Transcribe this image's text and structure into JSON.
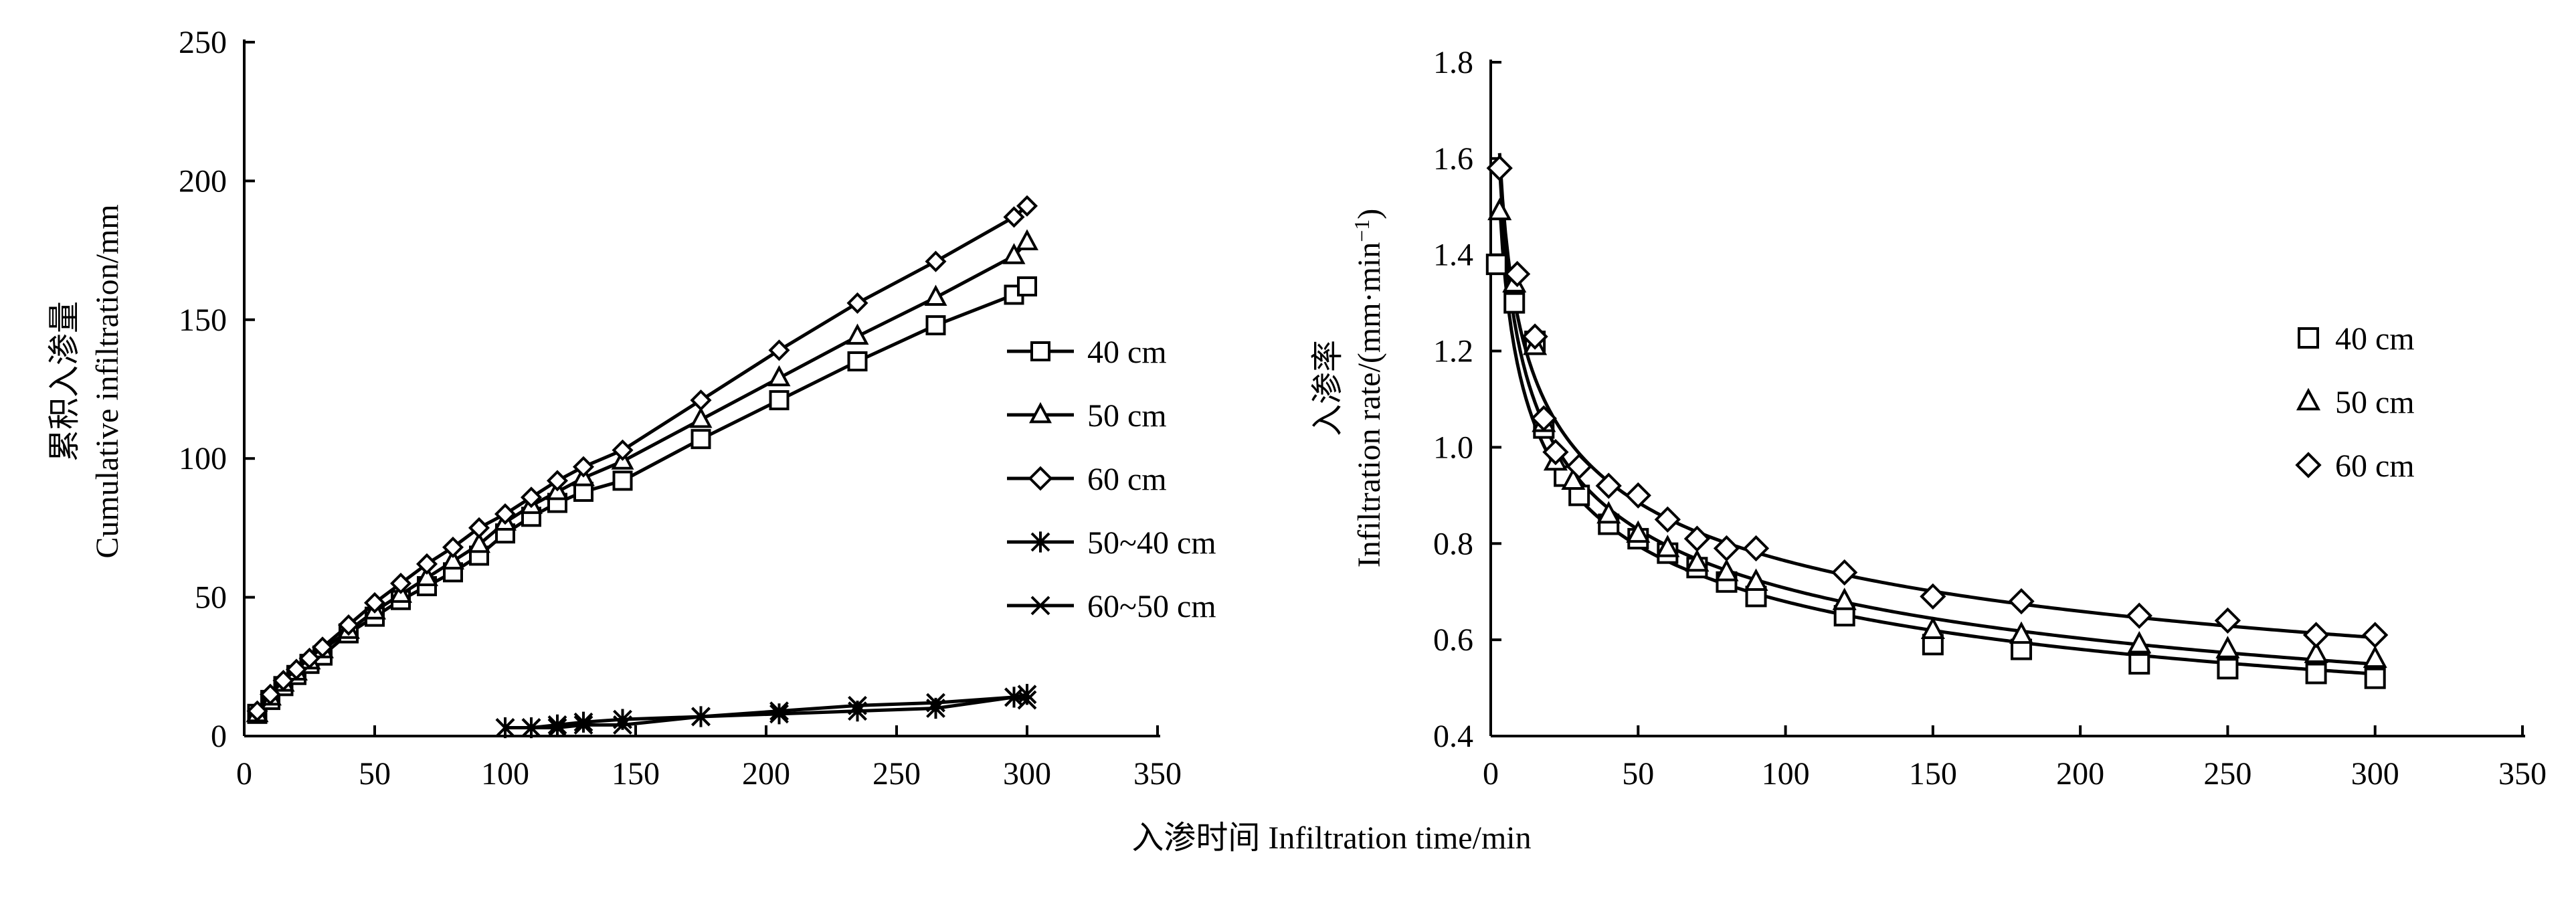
{
  "shared_xlabel": "入渗时间 Infiltration time/min",
  "chart_data": [
    {
      "type": "line",
      "title": "",
      "ylabel_cn": "累积入渗量",
      "ylabel_en": "Cumulative infiltration/mm",
      "xlim": [
        0,
        350
      ],
      "ylim": [
        0,
        250
      ],
      "xticks": [
        0,
        50,
        100,
        150,
        200,
        250,
        300,
        350
      ],
      "yticks": [
        0,
        50,
        100,
        150,
        200,
        250
      ],
      "grid": false,
      "legend_position": "right",
      "series": [
        {
          "name": "40 cm",
          "marker": "square",
          "x": [
            5,
            10,
            15,
            20,
            25,
            30,
            40,
            50,
            60,
            70,
            80,
            90,
            100,
            110,
            120,
            130,
            145,
            175,
            205,
            235,
            265,
            295,
            300
          ],
          "y": [
            8,
            13,
            18,
            22,
            26,
            29,
            37,
            43,
            49,
            54,
            59,
            65,
            73,
            79,
            84,
            88,
            92,
            107,
            121,
            135,
            148,
            159,
            162
          ]
        },
        {
          "name": "50 cm",
          "marker": "triangle",
          "x": [
            5,
            10,
            15,
            20,
            25,
            30,
            40,
            50,
            60,
            70,
            80,
            90,
            100,
            110,
            120,
            130,
            145,
            175,
            205,
            235,
            265,
            295,
            300
          ],
          "y": [
            8,
            14,
            19,
            23,
            27,
            31,
            38,
            45,
            51,
            57,
            63,
            69,
            77,
            83,
            88,
            93,
            99,
            114,
            129,
            144,
            158,
            173,
            178
          ]
        },
        {
          "name": "60 cm",
          "marker": "diamond",
          "x": [
            5,
            10,
            15,
            20,
            25,
            30,
            40,
            50,
            60,
            70,
            80,
            90,
            100,
            110,
            120,
            130,
            145,
            175,
            205,
            235,
            265,
            295,
            300
          ],
          "y": [
            9,
            15,
            20,
            24,
            28,
            32,
            40,
            48,
            55,
            62,
            68,
            75,
            80,
            86,
            92,
            97,
            103,
            121,
            139,
            156,
            171,
            187,
            191
          ]
        },
        {
          "name": "50~40 cm",
          "marker": "asterisk",
          "x": [
            100,
            110,
            120,
            130,
            145,
            175,
            205,
            235,
            265,
            295,
            300
          ],
          "y": [
            3,
            3,
            4,
            5,
            6,
            7,
            8,
            9,
            10,
            14,
            15
          ]
        },
        {
          "name": "60~50 cm",
          "marker": "cross",
          "x": [
            100,
            110,
            120,
            130,
            145,
            175,
            205,
            235,
            265,
            295,
            300
          ],
          "y": [
            3,
            3,
            3,
            4,
            4,
            7,
            9,
            11,
            12,
            14,
            13
          ]
        }
      ]
    },
    {
      "type": "scatter",
      "title": "",
      "ylabel_cn": "入渗率",
      "ylabel_en": "Infiltration rate/(mm·min",
      "ylabel_sup": "−1",
      "ylabel_close": ")",
      "xlim": [
        0,
        350
      ],
      "ylim": [
        0.4,
        1.8
      ],
      "xticks": [
        0,
        50,
        100,
        150,
        200,
        250,
        300,
        350
      ],
      "yticks": [
        "0.4",
        "0.6",
        "0.8",
        "1.0",
        "1.2",
        "1.4",
        "1.6",
        "1.8"
      ],
      "grid": false,
      "legend_position": "right",
      "fit_curves": true,
      "series": [
        {
          "name": "40 cm",
          "marker": "square",
          "x": [
            2,
            8,
            15,
            18,
            25,
            30,
            40,
            50,
            60,
            70,
            80,
            90,
            120,
            150,
            180,
            220,
            250,
            280,
            300
          ],
          "y": [
            1.38,
            1.3,
            1.22,
            1.04,
            0.94,
            0.9,
            0.84,
            0.81,
            0.78,
            0.75,
            0.72,
            0.69,
            0.65,
            0.59,
            0.58,
            0.55,
            0.54,
            0.53,
            0.52
          ]
        },
        {
          "name": "50 cm",
          "marker": "triangle",
          "x": [
            3,
            8,
            15,
            18,
            22,
            28,
            40,
            50,
            60,
            70,
            80,
            90,
            120,
            150,
            180,
            220,
            250,
            280,
            300
          ],
          "y": [
            1.49,
            1.34,
            1.21,
            1.05,
            0.97,
            0.93,
            0.86,
            0.82,
            0.79,
            0.76,
            0.74,
            0.72,
            0.68,
            0.62,
            0.61,
            0.59,
            0.58,
            0.57,
            0.56
          ]
        },
        {
          "name": "60 cm",
          "marker": "diamond",
          "x": [
            3,
            9,
            15,
            18,
            22,
            30,
            40,
            50,
            60,
            70,
            80,
            90,
            120,
            150,
            180,
            220,
            250,
            280,
            300
          ],
          "y": [
            1.58,
            1.36,
            1.23,
            1.06,
            0.99,
            0.96,
            0.92,
            0.9,
            0.85,
            0.81,
            0.79,
            0.79,
            0.74,
            0.69,
            0.68,
            0.65,
            0.64,
            0.61,
            0.61
          ]
        }
      ]
    }
  ]
}
